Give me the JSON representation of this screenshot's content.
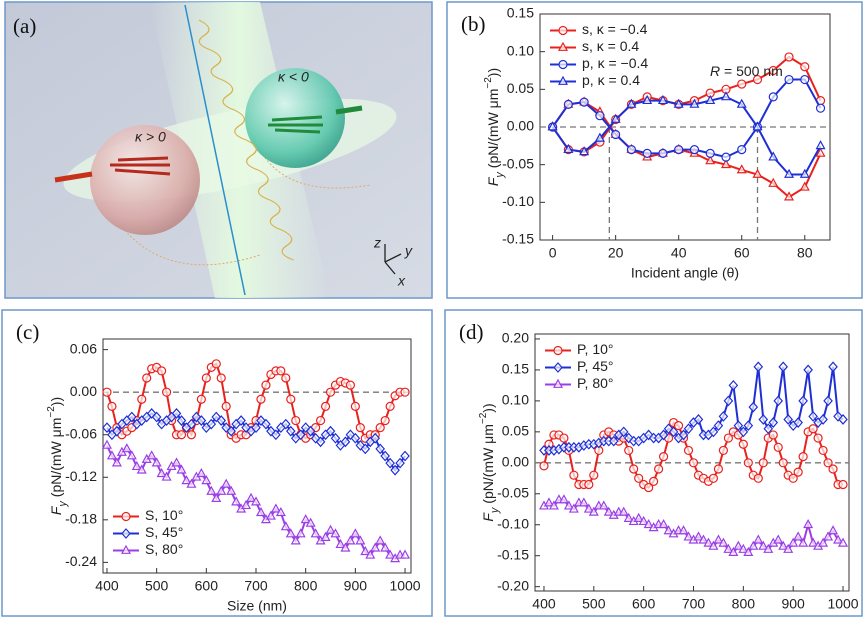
{
  "panel_a": {
    "label": "(a)",
    "sphere_left": "κ > 0",
    "sphere_right": "κ < 0",
    "axes": [
      "z",
      "y",
      "x"
    ]
  },
  "chart_data": [
    {
      "type": "line",
      "panel_label": "(b)",
      "annotation": [
        "R",
        " = 500 nm"
      ],
      "x_label": "Incident angle (θ)",
      "y_label": [
        "F",
        "y",
        " (pN/(mW μm",
        "−2",
        "))"
      ],
      "x": [
        0,
        5,
        10,
        15,
        20,
        25,
        30,
        35,
        40,
        45,
        50,
        55,
        60,
        65,
        70,
        75,
        80,
        85
      ],
      "series": [
        {
          "name": "s, κ = −0.4",
          "color": "#e8211d",
          "marker": "circle",
          "values": [
            0,
            -0.03,
            -0.033,
            -0.02,
            0.01,
            0.03,
            0.04,
            0.035,
            0.03,
            0.035,
            0.045,
            0.05,
            0.057,
            0.063,
            0.075,
            0.093,
            0.08,
            0.035
          ]
        },
        {
          "name": "s, κ = 0.4",
          "color": "#e8211d",
          "marker": "triangle",
          "values": [
            0,
            0.03,
            0.033,
            0.02,
            -0.01,
            -0.03,
            -0.04,
            -0.035,
            -0.03,
            -0.035,
            -0.045,
            -0.05,
            -0.057,
            -0.063,
            -0.075,
            -0.093,
            -0.08,
            -0.035
          ]
        },
        {
          "name": "p, κ = −0.4",
          "color": "#1f2fd6",
          "marker": "circle",
          "values": [
            0,
            0.03,
            0.033,
            0.015,
            -0.01,
            -0.03,
            -0.035,
            -0.035,
            -0.03,
            -0.03,
            -0.035,
            -0.04,
            -0.03,
            0,
            0.04,
            0.063,
            0.063,
            0.025
          ]
        },
        {
          "name": "p, κ = 0.4",
          "color": "#1f2fd6",
          "marker": "triangle",
          "values": [
            0,
            -0.03,
            -0.033,
            -0.015,
            0.01,
            0.03,
            0.035,
            0.035,
            0.03,
            0.03,
            0.035,
            0.04,
            0.03,
            0,
            -0.04,
            -0.063,
            -0.063,
            -0.025
          ]
        }
      ],
      "xlim": [
        -4,
        88
      ],
      "xticks": [
        0,
        20,
        40,
        60,
        80
      ],
      "ylim": [
        -0.15,
        0.15
      ],
      "yticks": [
        -0.15,
        {
          "value": -0.1,
          "label": "-0.10"
        },
        -0.05,
        {
          "value": 0,
          "label": "0.00"
        },
        0.05,
        {
          "value": 0.1,
          "label": "0.10"
        },
        0.15
      ],
      "hline": 0,
      "vlines": [
        18,
        65
      ],
      "legend": "upper left"
    },
    {
      "type": "line",
      "panel_label": "(c)",
      "x_label": "Size (nm)",
      "y_label": [
        "F",
        "y",
        " (pN/(mW μm",
        "−2",
        "))"
      ],
      "x": [
        400,
        410,
        420,
        430,
        440,
        450,
        460,
        470,
        480,
        490,
        500,
        510,
        520,
        530,
        540,
        550,
        560,
        570,
        580,
        590,
        600,
        610,
        620,
        630,
        640,
        650,
        660,
        670,
        680,
        690,
        700,
        710,
        720,
        730,
        740,
        750,
        760,
        770,
        780,
        790,
        800,
        810,
        820,
        830,
        840,
        850,
        860,
        870,
        880,
        890,
        900,
        910,
        920,
        930,
        940,
        950,
        960,
        970,
        980,
        990,
        1000
      ],
      "series": [
        {
          "name": "S, 10°",
          "color": "#e8211d",
          "marker": "circle",
          "values": [
            0,
            -0.02,
            -0.05,
            -0.06,
            -0.055,
            -0.05,
            -0.04,
            -0.01,
            0.02,
            0.033,
            0.035,
            0.03,
            0,
            -0.04,
            -0.06,
            -0.06,
            -0.05,
            -0.06,
            -0.04,
            -0.01,
            0.02,
            0.035,
            0.04,
            0.02,
            -0.02,
            -0.06,
            -0.065,
            -0.06,
            -0.06,
            -0.05,
            -0.04,
            -0.01,
            0.01,
            0.025,
            0.03,
            0.03,
            0.02,
            -0.01,
            -0.04,
            -0.06,
            -0.065,
            -0.06,
            -0.05,
            -0.04,
            -0.02,
            0,
            0.01,
            0.015,
            0.013,
            0.01,
            -0.02,
            -0.05,
            -0.065,
            -0.06,
            -0.06,
            -0.05,
            -0.04,
            -0.02,
            -0.005,
            0,
            0
          ]
        },
        {
          "name": "S, 45°",
          "color": "#1f2fd6",
          "marker": "diamond",
          "values": [
            -0.05,
            -0.06,
            -0.055,
            -0.045,
            -0.04,
            -0.035,
            -0.045,
            -0.04,
            -0.035,
            -0.03,
            -0.035,
            -0.045,
            -0.04,
            -0.035,
            -0.03,
            -0.04,
            -0.05,
            -0.045,
            -0.035,
            -0.04,
            -0.05,
            -0.045,
            -0.035,
            -0.04,
            -0.05,
            -0.055,
            -0.045,
            -0.04,
            -0.05,
            -0.055,
            -0.05,
            -0.04,
            -0.045,
            -0.055,
            -0.06,
            -0.05,
            -0.045,
            -0.055,
            -0.065,
            -0.06,
            -0.05,
            -0.055,
            -0.065,
            -0.07,
            -0.06,
            -0.055,
            -0.065,
            -0.075,
            -0.07,
            -0.06,
            -0.065,
            -0.075,
            -0.08,
            -0.07,
            -0.065,
            -0.08,
            -0.09,
            -0.1,
            -0.11,
            -0.1,
            -0.09
          ]
        },
        {
          "name": "S, 80°",
          "color": "#9b3ee6",
          "marker": "triangle",
          "values": [
            -0.075,
            -0.09,
            -0.1,
            -0.085,
            -0.08,
            -0.09,
            -0.105,
            -0.11,
            -0.095,
            -0.09,
            -0.1,
            -0.115,
            -0.12,
            -0.105,
            -0.1,
            -0.11,
            -0.125,
            -0.13,
            -0.12,
            -0.115,
            -0.125,
            -0.14,
            -0.15,
            -0.14,
            -0.13,
            -0.14,
            -0.155,
            -0.165,
            -0.16,
            -0.15,
            -0.155,
            -0.17,
            -0.18,
            -0.175,
            -0.165,
            -0.17,
            -0.19,
            -0.2,
            -0.21,
            -0.2,
            -0.18,
            -0.185,
            -0.2,
            -0.21,
            -0.205,
            -0.195,
            -0.2,
            -0.215,
            -0.22,
            -0.21,
            -0.2,
            -0.21,
            -0.225,
            -0.23,
            -0.22,
            -0.21,
            -0.22,
            -0.23,
            -0.235,
            -0.23,
            -0.23
          ]
        }
      ],
      "xlim": [
        392,
        1012
      ],
      "xticks": [
        400,
        500,
        600,
        700,
        800,
        900,
        1000
      ],
      "ylim": [
        -0.255,
        0.075
      ],
      "yticks": [
        -0.24,
        -0.18,
        -0.12,
        -0.06,
        {
          "value": 0,
          "label": "0.00"
        },
        0.06
      ],
      "hline": 0,
      "legend": "lower left"
    },
    {
      "type": "line",
      "panel_label": "(d)",
      "x_label": "Size (nm)",
      "y_label": [
        "F",
        "y",
        " (pN/(mW μm",
        "−2",
        "))"
      ],
      "x": [
        400,
        410,
        420,
        430,
        440,
        450,
        460,
        470,
        480,
        490,
        500,
        510,
        520,
        530,
        540,
        550,
        560,
        570,
        580,
        590,
        600,
        610,
        620,
        630,
        640,
        650,
        660,
        670,
        680,
        690,
        700,
        710,
        720,
        730,
        740,
        750,
        760,
        770,
        780,
        790,
        800,
        810,
        820,
        830,
        840,
        850,
        860,
        870,
        880,
        890,
        900,
        910,
        920,
        930,
        940,
        950,
        960,
        970,
        980,
        990,
        1000
      ],
      "series": [
        {
          "name": "P, 10°",
          "color": "#e8211d",
          "marker": "circle",
          "values": [
            -0.005,
            0.03,
            0.045,
            0.045,
            0.04,
            0.02,
            -0.02,
            -0.035,
            -0.035,
            -0.035,
            -0.02,
            0.02,
            0.045,
            0.05,
            0.045,
            0.035,
            0.04,
            0.02,
            -0.01,
            -0.025,
            -0.035,
            -0.04,
            -0.03,
            -0.01,
            0.01,
            0.04,
            0.065,
            0.06,
            0.04,
            0.02,
            0,
            -0.02,
            -0.025,
            -0.03,
            -0.025,
            -0.01,
            0.02,
            0.04,
            0.05,
            0.045,
            0.03,
            0,
            -0.02,
            -0.025,
            0,
            0.04,
            0.045,
            0.025,
            0,
            -0.02,
            -0.025,
            -0.015,
            0.01,
            0.05,
            0.055,
            0.04,
            0.02,
            0,
            -0.01,
            -0.035,
            -0.035
          ]
        },
        {
          "name": "P, 45°",
          "color": "#1f2fd6",
          "marker": "diamond",
          "values": [
            0.02,
            0.02,
            0.02,
            0.022,
            0.025,
            0.025,
            0.025,
            0.025,
            0.028,
            0.03,
            0.03,
            0.032,
            0.035,
            0.035,
            0.035,
            0.045,
            0.05,
            0.04,
            0.035,
            0.035,
            0.04,
            0.045,
            0.04,
            0.04,
            0.045,
            0.055,
            0.05,
            0.04,
            0.045,
            0.055,
            0.065,
            0.07,
            0.045,
            0.045,
            0.05,
            0.06,
            0.075,
            0.1,
            0.125,
            0.06,
            0.05,
            0.06,
            0.09,
            0.155,
            0.07,
            0.055,
            0.065,
            0.1,
            0.155,
            0.07,
            0.06,
            0.065,
            0.1,
            0.15,
            0.075,
            0.065,
            0.07,
            0.1,
            0.155,
            0.075,
            0.07
          ]
        },
        {
          "name": "P, 80°",
          "color": "#9b3ee6",
          "marker": "triangle",
          "values": [
            -0.07,
            -0.065,
            -0.07,
            -0.06,
            -0.06,
            -0.07,
            -0.075,
            -0.065,
            -0.065,
            -0.075,
            -0.08,
            -0.07,
            -0.07,
            -0.08,
            -0.085,
            -0.08,
            -0.08,
            -0.09,
            -0.095,
            -0.09,
            -0.095,
            -0.1,
            -0.105,
            -0.1,
            -0.1,
            -0.11,
            -0.115,
            -0.11,
            -0.11,
            -0.12,
            -0.125,
            -0.12,
            -0.125,
            -0.13,
            -0.135,
            -0.125,
            -0.13,
            -0.14,
            -0.145,
            -0.135,
            -0.14,
            -0.145,
            -0.135,
            -0.125,
            -0.135,
            -0.14,
            -0.13,
            -0.125,
            -0.135,
            -0.14,
            -0.13,
            -0.12,
            -0.13,
            -0.1,
            -0.13,
            -0.135,
            -0.13,
            -0.12,
            -0.11,
            -0.125,
            -0.13
          ]
        }
      ],
      "xlim": [
        382,
        1012
      ],
      "xticks": [
        400,
        500,
        600,
        700,
        800,
        900,
        1000
      ],
      "ylim": [
        -0.207,
        0.208
      ],
      "yticks": [
        {
          "value": -0.2,
          "label": "-0.20"
        },
        -0.15,
        {
          "value": -0.1,
          "label": "-0.10"
        },
        -0.05,
        {
          "value": 0,
          "label": "0.00"
        },
        0.05,
        {
          "value": 0.1,
          "label": "0.10"
        },
        0.15,
        {
          "value": 0.2,
          "label": "0.20"
        }
      ],
      "hline": 0,
      "legend": "upper left"
    }
  ]
}
